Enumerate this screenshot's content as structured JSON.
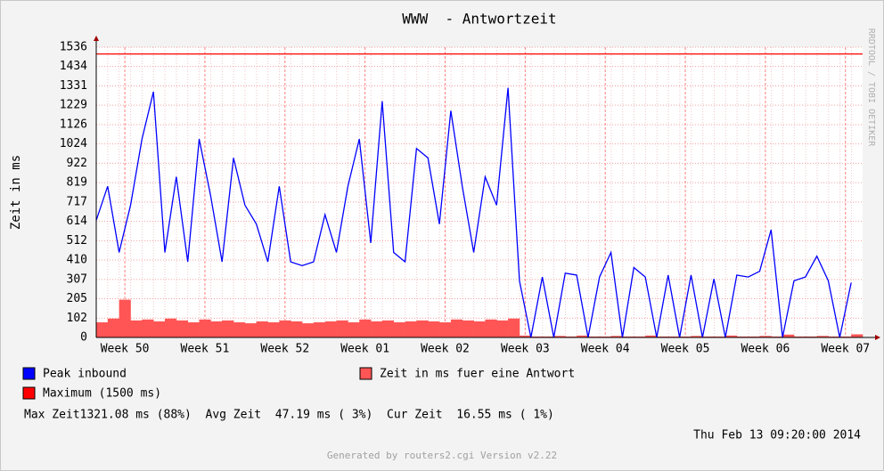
{
  "chart_data": {
    "type": "line",
    "title": "WWW  - Antwortzeit",
    "y_label": "Zeit in ms",
    "watermark": "RRDTOOL / TOBI OETIKER",
    "x": [
      0,
      1,
      2,
      3,
      4,
      5,
      6,
      7,
      8,
      9,
      10,
      11,
      12,
      13,
      14,
      15,
      16,
      17,
      18,
      19,
      20,
      21,
      22,
      23,
      24,
      25,
      26,
      27,
      28,
      29,
      30,
      31,
      32,
      33,
      34,
      35,
      36,
      37,
      38,
      39,
      40,
      41,
      42,
      43,
      44,
      45,
      46,
      47,
      48,
      49,
      50,
      51,
      52,
      53,
      54,
      55,
      56,
      57,
      58,
      59,
      60,
      61,
      62,
      63,
      64,
      65,
      66
    ],
    "xlim": [
      0,
      67
    ],
    "xticks": [
      {
        "value": 2.5,
        "label": "Week 50"
      },
      {
        "value": 9.5,
        "label": "Week 51"
      },
      {
        "value": 16.5,
        "label": "Week 52"
      },
      {
        "value": 23.5,
        "label": "Week 01"
      },
      {
        "value": 30.5,
        "label": "Week 02"
      },
      {
        "value": 37.5,
        "label": "Week 03"
      },
      {
        "value": 44.5,
        "label": "Week 04"
      },
      {
        "value": 51.5,
        "label": "Week 05"
      },
      {
        "value": 58.5,
        "label": "Week 06"
      },
      {
        "value": 65.5,
        "label": "Week 07"
      }
    ],
    "ylim": [
      0,
      1536
    ],
    "yticks": [
      0,
      102,
      205,
      307,
      410,
      512,
      614,
      717,
      819,
      922,
      1024,
      1126,
      1229,
      1331,
      1434,
      1536
    ],
    "grid": true,
    "series": [
      {
        "name": "Peak inbound",
        "color": "#0000ff",
        "style": "line",
        "values": [
          620,
          800,
          450,
          700,
          1050,
          1300,
          450,
          850,
          400,
          1050,
          750,
          400,
          950,
          700,
          600,
          400,
          800,
          400,
          380,
          400,
          650,
          450,
          800,
          1050,
          500,
          1250,
          450,
          400,
          1000,
          950,
          600,
          1200,
          800,
          450,
          850,
          700,
          1321,
          300,
          0,
          320,
          0,
          340,
          330,
          0,
          320,
          450,
          0,
          370,
          320,
          0,
          330,
          0,
          330,
          0,
          310,
          0,
          330,
          320,
          350,
          570,
          0,
          300,
          320,
          430,
          300,
          0,
          290
        ]
      },
      {
        "name": "Zeit in ms fuer eine Antwort",
        "color": "#ff5555",
        "style": "area",
        "values": [
          80,
          100,
          200,
          90,
          95,
          85,
          100,
          90,
          80,
          95,
          85,
          90,
          80,
          75,
          85,
          80,
          90,
          85,
          75,
          80,
          85,
          90,
          80,
          95,
          85,
          90,
          80,
          85,
          90,
          85,
          80,
          95,
          90,
          85,
          95,
          90,
          100,
          10,
          5,
          5,
          8,
          5,
          10,
          5,
          5,
          8,
          5,
          5,
          10,
          5,
          5,
          5,
          8,
          5,
          5,
          10,
          5,
          5,
          8,
          5,
          15,
          5,
          5,
          8,
          5,
          5,
          16.55
        ]
      }
    ],
    "threshold": {
      "name": "Maximum (1500 ms)",
      "value": 1500,
      "color": "#ff0000"
    },
    "stats": "Max Zeit1321.08 ms (88%)  Avg Zeit  47.19 ms ( 3%)  Cur Zeit  16.55 ms ( 1%)",
    "timestamp": "Thu Feb 13 09:20:00 2014",
    "footer": "Generated by routers2.cgi Version v2.22"
  }
}
